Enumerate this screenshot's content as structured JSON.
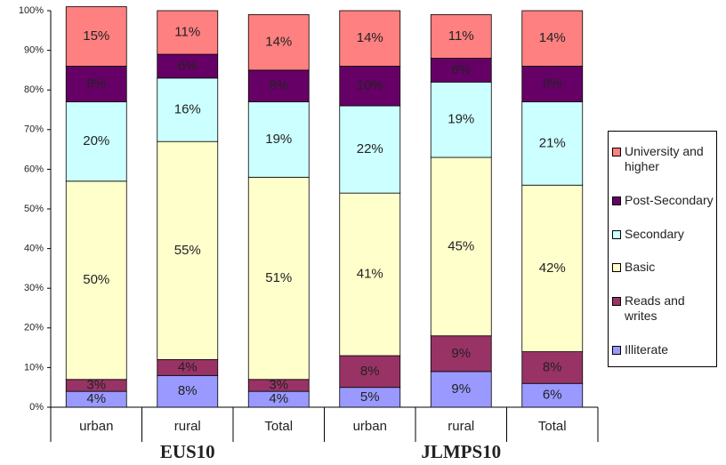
{
  "chart_data": {
    "type": "stacked_bar",
    "categories": [
      "urban",
      "rural",
      "Total",
      "urban",
      "rural",
      "Total"
    ],
    "groups": [
      "EUS10",
      "JLMPS10"
    ],
    "ylim": [
      0,
      100
    ],
    "yticks": [
      {
        "value": 0,
        "label": "0%"
      },
      {
        "value": 10,
        "label": "10%"
      },
      {
        "value": 20,
        "label": "20%"
      },
      {
        "value": 30,
        "label": "30%"
      },
      {
        "value": 40,
        "label": "40%"
      },
      {
        "value": 50,
        "label": "50%"
      },
      {
        "value": 60,
        "label": "60%"
      },
      {
        "value": 70,
        "label": "70%"
      },
      {
        "value": 80,
        "label": "80%"
      },
      {
        "value": 90,
        "label": "90%"
      },
      {
        "value": 100,
        "label": "100%"
      }
    ],
    "legend": "right",
    "series": [
      {
        "name": "Illiterate",
        "color": "#9999ff",
        "values": [
          4,
          8,
          4,
          5,
          9,
          6
        ],
        "value_labels": [
          "4%",
          "8%",
          "4%",
          "5%",
          "9%",
          "6%"
        ]
      },
      {
        "name": "Reads and writes",
        "color": "#993366",
        "values": [
          3,
          4,
          3,
          8,
          9,
          8
        ],
        "value_labels": [
          "3%",
          "4%",
          "3%",
          "8%",
          "9%",
          "8%"
        ]
      },
      {
        "name": "Basic",
        "color": "#ffffcc",
        "values": [
          50,
          55,
          51,
          41,
          45,
          42
        ],
        "value_labels": [
          "50%",
          "55%",
          "51%",
          "41%",
          "45%",
          "42%"
        ]
      },
      {
        "name": "Secondary",
        "color": "#ccffff",
        "values": [
          20,
          16,
          19,
          22,
          19,
          21
        ],
        "value_labels": [
          "20%",
          "16%",
          "19%",
          "22%",
          "19%",
          "21%"
        ]
      },
      {
        "name": "Post-Secondary",
        "color": "#660066",
        "values": [
          9,
          6,
          8,
          10,
          6,
          9
        ],
        "value_labels": [
          "9%",
          "6%",
          "8%",
          "10%",
          "6%",
          "9%"
        ]
      },
      {
        "name": "University and higher",
        "color": "#ff8080",
        "values": [
          15,
          11,
          14,
          14,
          11,
          14
        ],
        "value_labels": [
          "15%",
          "11%",
          "14%",
          "14%",
          "11%",
          "14%"
        ]
      }
    ]
  }
}
